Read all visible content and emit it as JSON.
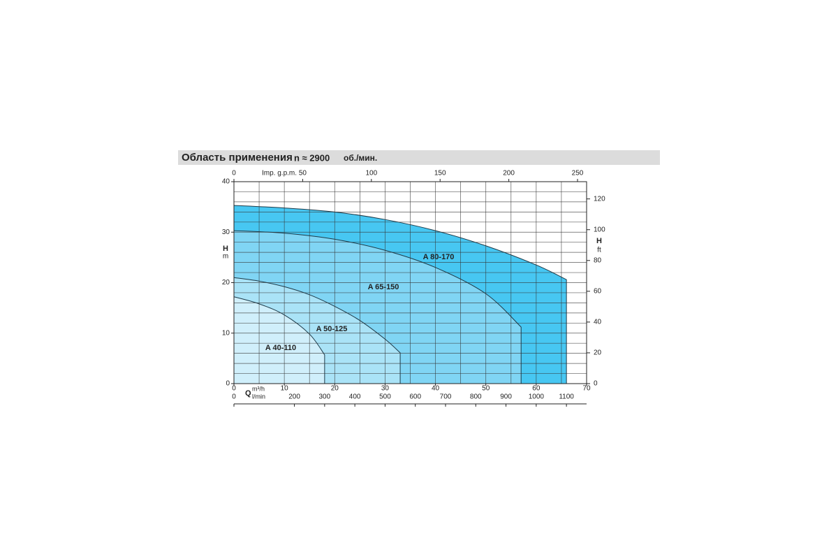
{
  "chart_data": {
    "type": "area",
    "title": "Область применения",
    "speed": "n ≈ 2900",
    "speed_unit": "об./мин.",
    "x_label": "Q",
    "x_unit": "m³/h",
    "xlim": [
      0,
      70
    ],
    "xticks": [
      0,
      10,
      20,
      30,
      40,
      50,
      60,
      70
    ],
    "x2_label": "Imp. g.p.m.",
    "x2lim": [
      0,
      256.6
    ],
    "x2ticks": [
      0,
      50,
      100,
      150,
      200,
      250
    ],
    "x3_unit": "l/min",
    "x3lim": [
      0,
      1166.7
    ],
    "x3ticks": [
      0,
      200,
      300,
      400,
      500,
      600,
      700,
      800,
      900,
      1000,
      1100
    ],
    "y_label": "H",
    "y_unit": "m",
    "ylim": [
      0,
      40
    ],
    "yticks": [
      0,
      10,
      20,
      30,
      40
    ],
    "y2_label": "H",
    "y2_unit": "ft",
    "y2lim": [
      0,
      131.2
    ],
    "y2ticks": [
      0,
      20,
      40,
      60,
      80,
      100,
      120
    ],
    "grid": {
      "x_step": 5,
      "y_step": 2
    },
    "series": [
      {
        "name": "A 80-170",
        "color": "#47c7f2",
        "x": [
          0,
          10,
          20,
          30,
          40,
          50,
          60,
          66
        ],
        "values": [
          35.3,
          34.8,
          34.0,
          32.5,
          30.3,
          27.3,
          23.5,
          20.6
        ]
      },
      {
        "name": "A 65-150",
        "color": "#80d5f4",
        "x": [
          0,
          10,
          20,
          30,
          40,
          50,
          57
        ],
        "values": [
          30.3,
          29.8,
          28.6,
          26.4,
          23.0,
          17.8,
          11.2
        ]
      },
      {
        "name": "A 50-125",
        "color": "#aae3f7",
        "x": [
          0,
          5,
          10,
          15,
          20,
          25,
          30,
          33
        ],
        "values": [
          21.0,
          20.3,
          19.2,
          17.6,
          15.3,
          12.5,
          8.8,
          6.1
        ]
      },
      {
        "name": "A 40-110",
        "color": "#d0effb",
        "x": [
          0,
          5,
          10,
          15,
          18
        ],
        "values": [
          17.2,
          15.8,
          13.6,
          9.8,
          5.7
        ]
      }
    ]
  }
}
